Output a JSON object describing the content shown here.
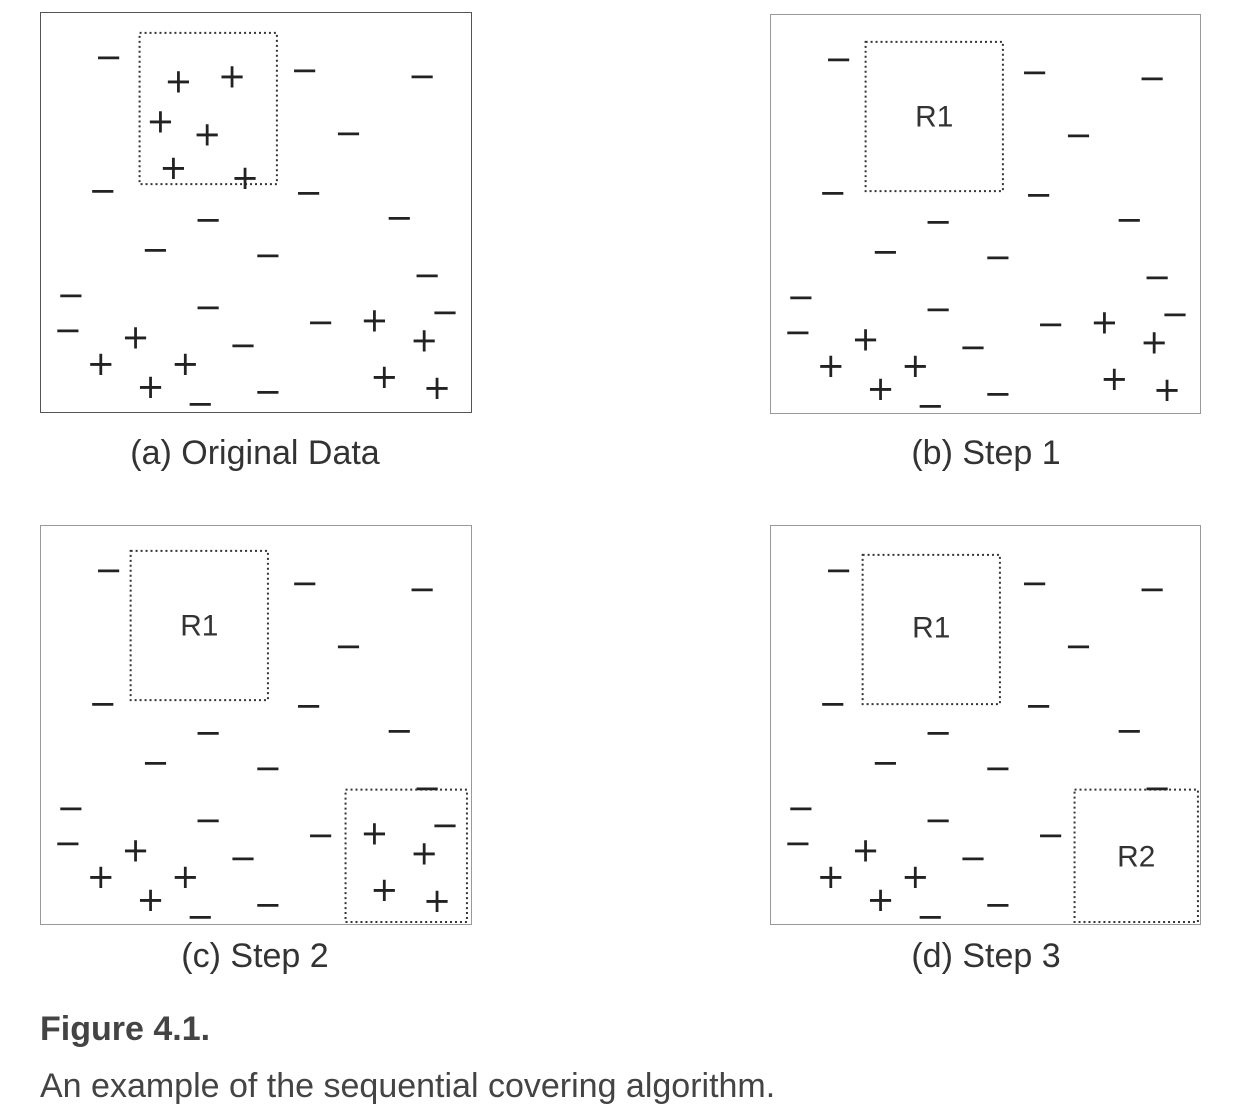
{
  "figure": {
    "title": "Figure 4.1.",
    "caption": "An example of the sequential covering algorithm."
  },
  "panels": [
    {
      "id": "a",
      "caption": "(a) Original Data"
    },
    {
      "id": "b",
      "caption": "(b) Step 1",
      "region_label": "R1"
    },
    {
      "id": "c",
      "caption": "(c) Step 2",
      "region_label": "R1"
    },
    {
      "id": "d",
      "caption": "(d) Step 3",
      "region_labels": [
        "R1",
        "R2"
      ]
    }
  ],
  "symbols": {
    "positive": "+",
    "negative": "−"
  }
}
